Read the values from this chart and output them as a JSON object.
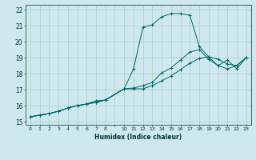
{
  "title": "",
  "xlabel": "Humidex (Indice chaleur)",
  "bg_color": "#cfe8f0",
  "grid_color": "#a8cfc0",
  "line_color": "#006666",
  "xlim": [
    -0.5,
    23.5
  ],
  "ylim": [
    14.8,
    22.3
  ],
  "xticks": [
    0,
    1,
    2,
    3,
    4,
    5,
    6,
    7,
    8,
    9,
    10,
    11,
    12,
    13,
    14,
    15,
    16,
    17,
    18,
    19,
    20,
    21,
    22,
    23
  ],
  "xticklabels": [
    "0",
    "1",
    "2",
    "3",
    "4",
    "5",
    "6",
    "7",
    "8",
    "",
    "10",
    "11",
    "12",
    "13",
    "14",
    "15",
    "16",
    "17",
    "18",
    "19",
    "20",
    "21",
    "22",
    "23"
  ],
  "yticks": [
    15,
    16,
    17,
    18,
    19,
    20,
    21,
    22
  ],
  "series": [
    {
      "x": [
        0,
        1,
        2,
        3,
        4,
        5,
        6,
        7,
        8,
        10,
        11,
        12,
        13,
        14,
        15,
        16,
        17,
        18,
        19,
        20,
        21,
        22,
        23
      ],
      "y": [
        15.3,
        15.4,
        15.5,
        15.65,
        15.85,
        16.0,
        16.1,
        16.3,
        16.35,
        17.05,
        18.3,
        20.9,
        21.05,
        21.55,
        21.75,
        21.75,
        21.65,
        19.7,
        19.05,
        18.5,
        18.3,
        18.5,
        19.0
      ]
    },
    {
      "x": [
        0,
        1,
        2,
        3,
        4,
        5,
        6,
        7,
        8,
        10,
        11,
        12,
        13,
        14,
        15,
        16,
        17,
        18,
        19,
        20,
        21,
        22,
        23
      ],
      "y": [
        15.3,
        15.4,
        15.5,
        15.65,
        15.85,
        16.0,
        16.1,
        16.2,
        16.35,
        17.05,
        17.1,
        17.25,
        17.45,
        18.05,
        18.35,
        18.85,
        19.35,
        19.5,
        18.9,
        18.5,
        18.85,
        18.3,
        19.0
      ]
    },
    {
      "x": [
        0,
        1,
        2,
        3,
        4,
        5,
        6,
        7,
        8,
        10,
        11,
        12,
        13,
        14,
        15,
        16,
        17,
        18,
        19,
        20,
        21,
        22,
        23
      ],
      "y": [
        15.3,
        15.4,
        15.5,
        15.65,
        15.85,
        16.0,
        16.1,
        16.2,
        16.35,
        17.05,
        17.05,
        17.05,
        17.25,
        17.55,
        17.85,
        18.25,
        18.65,
        18.95,
        19.05,
        18.9,
        18.6,
        18.5,
        19.0
      ]
    }
  ]
}
